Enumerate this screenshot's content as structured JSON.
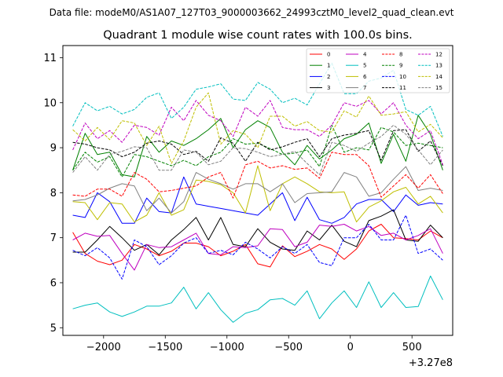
{
  "chart_data": {
    "type": "line",
    "suptitle": "Data file: modeM0/AS1A07_127T03_9000003662_24993cztM0_level2_quad_clean.evt",
    "title": "Quadrant 1 module wise count rates with 100.0s bins.",
    "xlabel": "",
    "ylabel": "",
    "x_offset_label": "+3.27e8",
    "xlim": [
      -2330,
      830
    ],
    "ylim": [
      4.83,
      11.27
    ],
    "xticks": [
      -2000,
      -1500,
      -1000,
      -500,
      0,
      500
    ],
    "xtick_labels": [
      "−2000",
      "−1500",
      "−1000",
      "−500",
      "0",
      "500"
    ],
    "yticks": [
      5,
      6,
      7,
      8,
      9,
      10,
      11
    ],
    "ytick_labels": [
      "5",
      "6",
      "7",
      "8",
      "9",
      "10",
      "11"
    ],
    "legend_position": "upper-right",
    "legend_columns": 4,
    "x": [
      -2250,
      -2150,
      -2050,
      -1950,
      -1850,
      -1750,
      -1650,
      -1550,
      -1450,
      -1350,
      -1250,
      -1150,
      -1050,
      -950,
      -850,
      -750,
      -650,
      -550,
      -450,
      -350,
      -250,
      -150,
      -50,
      50,
      150,
      250,
      350,
      450,
      550,
      650,
      750
    ],
    "series": [
      {
        "name": "0",
        "color": "#ff0000",
        "dash": "solid",
        "values": [
          7.12,
          6.65,
          6.48,
          6.4,
          6.5,
          6.85,
          6.75,
          6.6,
          6.7,
          6.88,
          6.88,
          6.8,
          6.6,
          6.7,
          6.85,
          6.42,
          6.35,
          6.82,
          6.58,
          6.7,
          6.85,
          6.75,
          6.52,
          6.75,
          7.15,
          7.3,
          7.0,
          6.98,
          6.95,
          7.15,
          7.0
        ]
      },
      {
        "name": "1",
        "color": "#008000",
        "dash": "solid",
        "values": [
          8.5,
          9.32,
          8.85,
          8.9,
          8.4,
          8.35,
          9.25,
          8.9,
          9.15,
          9.05,
          9.2,
          9.4,
          9.65,
          9.0,
          9.4,
          9.6,
          9.45,
          8.9,
          8.62,
          9.05,
          8.75,
          8.95,
          9.2,
          9.3,
          9.55,
          8.65,
          9.3,
          8.7,
          9.72,
          9.3,
          8.5
        ]
      },
      {
        "name": "2",
        "color": "#0000ff",
        "dash": "solid",
        "values": [
          7.5,
          7.45,
          8.0,
          7.8,
          7.32,
          7.32,
          7.88,
          7.58,
          7.55,
          8.35,
          7.75,
          7.7,
          7.65,
          7.6,
          7.55,
          7.5,
          7.75,
          8.0,
          7.38,
          7.9,
          7.4,
          7.32,
          7.45,
          7.75,
          7.85,
          7.85,
          7.58,
          7.95,
          7.72,
          7.78,
          7.75
        ]
      },
      {
        "name": "3",
        "color": "#000000",
        "dash": "solid",
        "values": [
          6.68,
          6.68,
          6.95,
          7.25,
          7.0,
          6.72,
          6.85,
          6.62,
          6.95,
          7.18,
          7.45,
          6.95,
          7.45,
          6.85,
          6.8,
          7.2,
          6.9,
          6.75,
          6.72,
          7.15,
          6.95,
          7.28,
          6.92,
          6.8,
          7.38,
          7.48,
          7.62,
          6.95,
          6.92,
          7.28,
          7.0
        ]
      },
      {
        "name": "4",
        "color": "#bf00bf",
        "dash": "solid",
        "values": [
          6.95,
          7.1,
          7.03,
          7.05,
          6.65,
          6.28,
          6.85,
          6.78,
          6.8,
          6.95,
          7.1,
          6.65,
          6.62,
          6.8,
          6.78,
          6.82,
          7.2,
          7.18,
          6.8,
          6.9,
          7.28,
          7.25,
          7.3,
          7.15,
          7.25,
          7.05,
          7.1,
          6.95,
          7.05,
          7.2,
          6.65
        ]
      },
      {
        "name": "5",
        "color": "#00bfbf",
        "dash": "solid",
        "values": [
          5.42,
          5.5,
          5.55,
          5.35,
          5.25,
          5.35,
          5.48,
          5.48,
          5.55,
          5.9,
          5.42,
          5.78,
          5.4,
          5.12,
          5.32,
          5.4,
          5.62,
          5.65,
          5.5,
          5.82,
          5.2,
          5.55,
          5.82,
          5.45,
          6.02,
          5.45,
          5.78,
          5.45,
          5.47,
          6.15,
          5.62
        ]
      },
      {
        "name": "6",
        "color": "#bfbf00",
        "dash": "solid",
        "values": [
          7.8,
          7.78,
          7.4,
          7.78,
          7.75,
          7.35,
          7.5,
          8.0,
          7.5,
          7.62,
          8.28,
          8.25,
          8.18,
          8.0,
          7.55,
          8.6,
          7.6,
          8.2,
          8.35,
          8.2,
          8.02,
          8.0,
          8.02,
          7.35,
          7.68,
          7.82,
          8.02,
          8.12,
          7.75,
          7.92,
          7.55
        ]
      },
      {
        "name": "7",
        "color": "#808080",
        "dash": "solid",
        "values": [
          7.82,
          7.85,
          7.95,
          8.1,
          8.2,
          8.15,
          7.6,
          7.88,
          7.55,
          7.8,
          8.45,
          8.3,
          8.2,
          8.08,
          8.2,
          8.2,
          8.02,
          8.2,
          7.78,
          7.98,
          8.0,
          8.02,
          8.45,
          8.35,
          7.92,
          8.0,
          8.3,
          8.58,
          8.05,
          8.1,
          8.05
        ]
      },
      {
        "name": "8",
        "color": "#ff0000",
        "dash": "dashed",
        "values": [
          7.95,
          7.92,
          8.08,
          8.08,
          7.92,
          8.45,
          8.3,
          8.02,
          8.05,
          8.1,
          8.15,
          8.35,
          8.45,
          7.88,
          8.62,
          8.7,
          8.55,
          8.6,
          8.52,
          8.55,
          8.32,
          8.9,
          8.85,
          8.85,
          8.6,
          7.9,
          8.15,
          8.4,
          8.1,
          8.4,
          7.98
        ]
      },
      {
        "name": "9",
        "color": "#008000",
        "dash": "dashed",
        "values": [
          8.5,
          8.9,
          8.68,
          8.8,
          8.35,
          8.85,
          8.8,
          8.7,
          8.6,
          8.72,
          8.6,
          8.8,
          8.9,
          9.2,
          9.08,
          9.1,
          8.98,
          8.85,
          8.88,
          8.95,
          8.58,
          9.5,
          8.9,
          9.0,
          8.95,
          9.45,
          9.35,
          9.05,
          9.1,
          9.05,
          9.0
        ]
      },
      {
        "name": "10",
        "color": "#0000ff",
        "dash": "dashed",
        "values": [
          6.72,
          6.6,
          6.78,
          6.55,
          6.08,
          6.95,
          6.8,
          6.4,
          6.6,
          6.88,
          7.0,
          6.65,
          6.72,
          6.62,
          6.9,
          6.75,
          6.55,
          6.8,
          6.65,
          6.85,
          6.45,
          6.38,
          7.0,
          7.0,
          7.3,
          6.95,
          6.95,
          7.5,
          6.65,
          6.75,
          6.5
        ]
      },
      {
        "name": "11",
        "color": "#000000",
        "dash": "dashed",
        "values": [
          9.12,
          9.08,
          9.0,
          8.95,
          8.8,
          8.9,
          9.1,
          9.15,
          9.08,
          8.85,
          8.92,
          8.7,
          9.22,
          9.1,
          8.7,
          9.12,
          8.95,
          9.02,
          9.12,
          9.2,
          8.8,
          9.2,
          9.28,
          9.32,
          9.38,
          8.72,
          9.38,
          9.4,
          8.92,
          9.15,
          8.6
        ]
      },
      {
        "name": "12",
        "color": "#bf00bf",
        "dash": "dashed",
        "values": [
          8.95,
          9.55,
          9.2,
          9.38,
          9.12,
          9.5,
          9.45,
          9.28,
          9.9,
          9.6,
          10.05,
          9.72,
          9.6,
          9.25,
          9.9,
          9.7,
          10.05,
          9.45,
          9.4,
          9.4,
          9.25,
          9.5,
          10.0,
          9.92,
          10.05,
          9.75,
          10.0,
          9.5,
          9.2,
          9.38,
          8.62
        ]
      },
      {
        "name": "13",
        "color": "#00bfbf",
        "dash": "dashed",
        "values": [
          9.48,
          10.0,
          9.82,
          9.92,
          9.75,
          9.85,
          10.12,
          10.22,
          9.65,
          9.9,
          10.3,
          10.35,
          10.42,
          10.08,
          10.05,
          10.45,
          10.3,
          10.0,
          10.1,
          9.95,
          10.42,
          10.88,
          10.2,
          10.2,
          10.48,
          10.55,
          10.72,
          9.85,
          9.72,
          9.92,
          9.25
        ]
      },
      {
        "name": "14",
        "color": "#bfbf00",
        "dash": "dashed",
        "values": [
          9.4,
          9.15,
          9.45,
          9.18,
          9.6,
          9.55,
          9.05,
          9.48,
          8.65,
          9.15,
          9.9,
          10.22,
          9.08,
          9.38,
          9.3,
          9.0,
          9.7,
          9.7,
          9.48,
          9.58,
          9.38,
          9.35,
          9.82,
          9.68,
          10.15,
          9.72,
          9.75,
          9.8,
          9.35,
          9.52,
          9.22
        ]
      },
      {
        "name": "15",
        "color": "#808080",
        "dash": "dashed",
        "values": [
          8.45,
          8.8,
          8.5,
          8.85,
          8.92,
          9.02,
          9.0,
          8.5,
          8.5,
          8.95,
          8.9,
          8.62,
          8.7,
          9.0,
          8.98,
          8.9,
          8.8,
          8.85,
          8.92,
          8.65,
          8.4,
          9.12,
          9.05,
          8.92,
          9.1,
          9.25,
          9.5,
          9.3,
          8.95,
          8.62,
          8.95
        ]
      }
    ]
  }
}
